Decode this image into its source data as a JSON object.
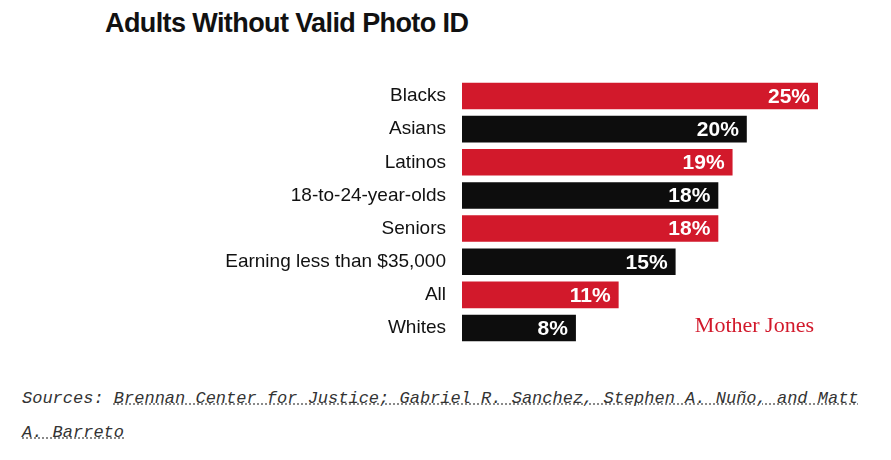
{
  "chart_data": {
    "type": "bar",
    "orientation": "horizontal",
    "title": "Adults Without Valid Photo ID",
    "categories": [
      "Blacks",
      "Asians",
      "Latinos",
      "18-to-24-year-olds",
      "Seniors",
      "Earning less than $35,000",
      "All",
      "Whites"
    ],
    "values": [
      25,
      20,
      19,
      18,
      18,
      15,
      11,
      8
    ],
    "value_labels": [
      "25%",
      "20%",
      "19%",
      "18%",
      "18%",
      "15%",
      "11%",
      "8%"
    ],
    "colors": [
      "#d2192b",
      "#0d0d0d",
      "#d2192b",
      "#0d0d0d",
      "#d2192b",
      "#0d0d0d",
      "#d2192b",
      "#0d0d0d"
    ],
    "xlim": [
      0,
      25
    ],
    "grid": false,
    "data_labels": true,
    "tick_labels": "y",
    "annotations": [
      "Mother Jones",
      "Sources: Brennan Center for Justice; Gabriel R. Sanchez, Stephen A. Nuño, and Matt A. Barreto"
    ]
  }
}
